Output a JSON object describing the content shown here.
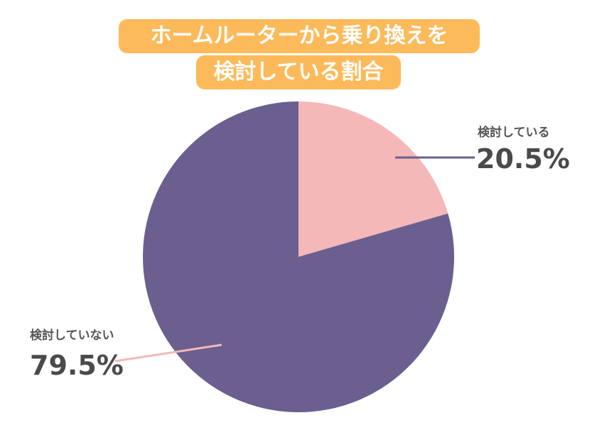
{
  "title": {
    "line1": "ホームルーターから乗り換えを",
    "line2": "検討している割合"
  },
  "chart_data": {
    "type": "pie",
    "title": "ホームルーターから乗り換えを検討している割合",
    "categories": [
      "検討している",
      "検討していない"
    ],
    "values": [
      20.5,
      79.5
    ],
    "value_labels": [
      "20.5%",
      "79.5%"
    ],
    "colors": [
      "#F4B8B8",
      "#6B5F90"
    ],
    "start_angle_deg": 0,
    "direction": "clockwise"
  }
}
